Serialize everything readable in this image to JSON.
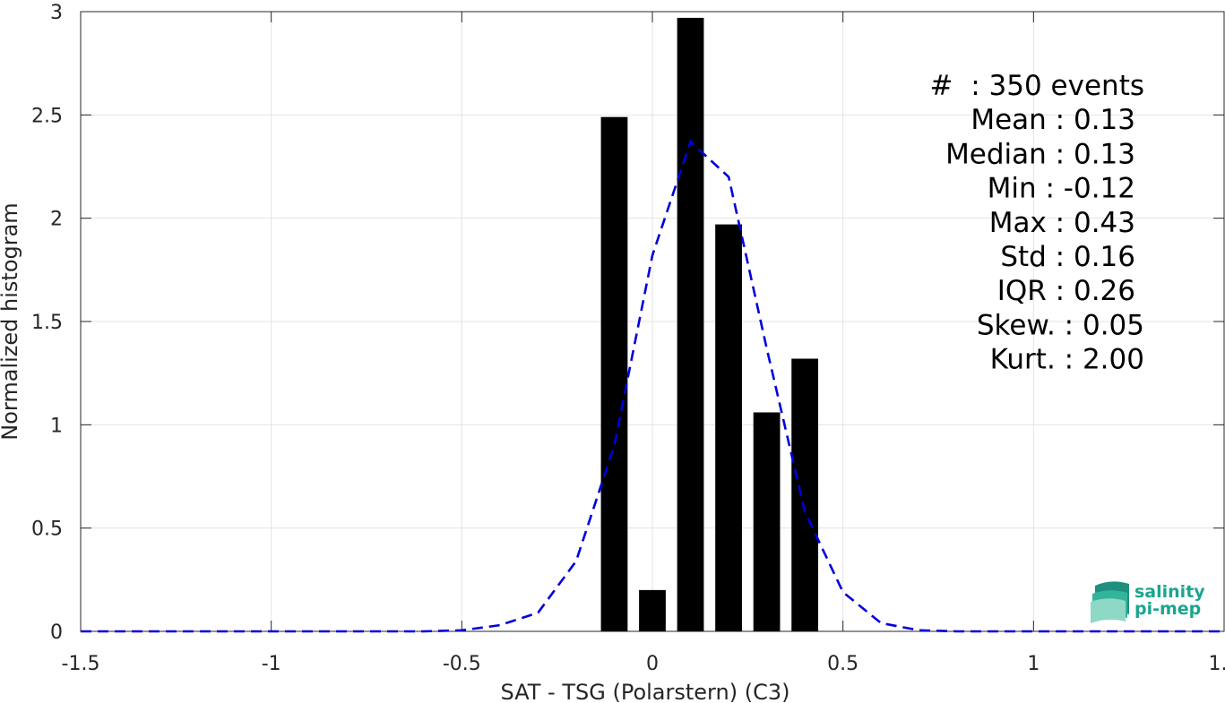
{
  "chart_data": {
    "type": "bar",
    "title": "",
    "xlabel": "SAT - TSG (Polarstern) (C3)",
    "ylabel": "Normalized histogram",
    "xlim": [
      -1.5,
      1.5
    ],
    "ylim": [
      0,
      3
    ],
    "grid": true,
    "x_ticks": [
      -1.5,
      -1,
      -0.5,
      0,
      0.5,
      1,
      1.5
    ],
    "x_tick_labels": [
      "-1.5",
      "-1",
      "-0.5",
      "0",
      "0.5",
      "1",
      "1.5"
    ],
    "y_ticks": [
      0,
      0.5,
      1,
      1.5,
      2,
      2.5,
      3
    ],
    "y_tick_labels": [
      "0",
      "0.5",
      "1",
      "1.5",
      "2",
      "2.5",
      "3"
    ],
    "bar_width": 0.07,
    "bars": {
      "x": [
        -0.1,
        0.0,
        0.1,
        0.2,
        0.3,
        0.4
      ],
      "values": [
        2.49,
        0.2,
        2.97,
        1.97,
        1.06,
        1.32
      ],
      "color": "#000000"
    },
    "fit_curve": {
      "style": "dashed",
      "color": "#0000dd",
      "x": [
        -1.5,
        -1.4,
        -1.3,
        -1.2,
        -1.1,
        -1.0,
        -0.9,
        -0.8,
        -0.7,
        -0.6,
        -0.5,
        -0.4,
        -0.3,
        -0.2,
        -0.1,
        0.0,
        0.1,
        0.2,
        0.3,
        0.4,
        0.5,
        0.6,
        0.7,
        0.8,
        0.9,
        1.0,
        1.1,
        1.2,
        1.3,
        1.4,
        1.5
      ],
      "values": [
        0,
        0,
        0,
        0,
        0,
        0,
        0,
        0,
        0,
        0,
        0.005,
        0.03,
        0.09,
        0.34,
        0.9,
        1.82,
        2.37,
        2.2,
        1.37,
        0.58,
        0.19,
        0.04,
        0.005,
        0,
        0,
        0,
        0,
        0,
        0,
        0,
        0
      ]
    },
    "annotations": [
      "#  : 350 events",
      "Mean : 0.13",
      "Median : 0.13",
      "Min : -0.12",
      "Max : 0.43",
      "Std : 0.16",
      "IQR : 0.26",
      "Skew. : 0.05",
      "Kurt. : 2.00"
    ]
  },
  "logo": {
    "line1": "salinity",
    "line2": "pi-mep",
    "color": "#1aa58f"
  }
}
